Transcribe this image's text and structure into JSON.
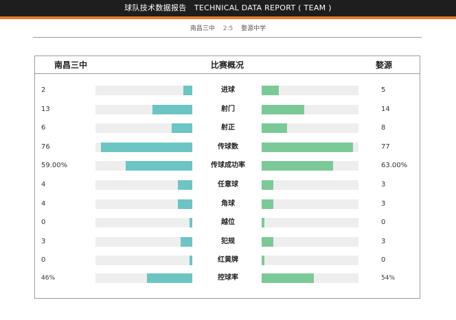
{
  "header": {
    "title": "球队技术数据报告　TECHNICAL DATA REPORT ( TEAM )"
  },
  "match": {
    "home": "南昌三中",
    "score": "2:5",
    "away": "婺源中学"
  },
  "panel": {
    "home_label": "南昌三中",
    "center_label": "比赛概况",
    "away_label": "婺源"
  },
  "colors": {
    "home_bar": "#6cc5c3",
    "away_bar": "#7cc998",
    "track": "#eeeeee",
    "accent": "#e87b2b"
  },
  "stats": [
    {
      "label": "进球",
      "left": "2",
      "right": "5",
      "left_frac": 0.09,
      "right_frac": 0.18
    },
    {
      "label": "射门",
      "left": "13",
      "right": "14",
      "left_frac": 0.41,
      "right_frac": 0.44
    },
    {
      "label": "射正",
      "left": "6",
      "right": "8",
      "left_frac": 0.21,
      "right_frac": 0.26
    },
    {
      "label": "传球数",
      "left": "76",
      "right": "77",
      "left_frac": 0.94,
      "right_frac": 0.94
    },
    {
      "label": "传球成功率",
      "left": "59.00%",
      "right": "63.00%",
      "left_frac": 0.69,
      "right_frac": 0.74
    },
    {
      "label": "任意球",
      "left": "4",
      "right": "3",
      "left_frac": 0.15,
      "right_frac": 0.12
    },
    {
      "label": "角球",
      "left": "4",
      "right": "3",
      "left_frac": 0.15,
      "right_frac": 0.12
    },
    {
      "label": "越位",
      "left": "0",
      "right": "0",
      "left_frac": 0.03,
      "right_frac": 0.03
    },
    {
      "label": "犯规",
      "left": "3",
      "right": "3",
      "left_frac": 0.12,
      "right_frac": 0.12
    },
    {
      "label": "红黄牌",
      "left": "0",
      "right": "0",
      "left_frac": 0.03,
      "right_frac": 0.03
    },
    {
      "label": "控球率",
      "left": "46%",
      "right": "54%",
      "left_frac": 0.47,
      "right_frac": 0.54,
      "small": true
    }
  ]
}
